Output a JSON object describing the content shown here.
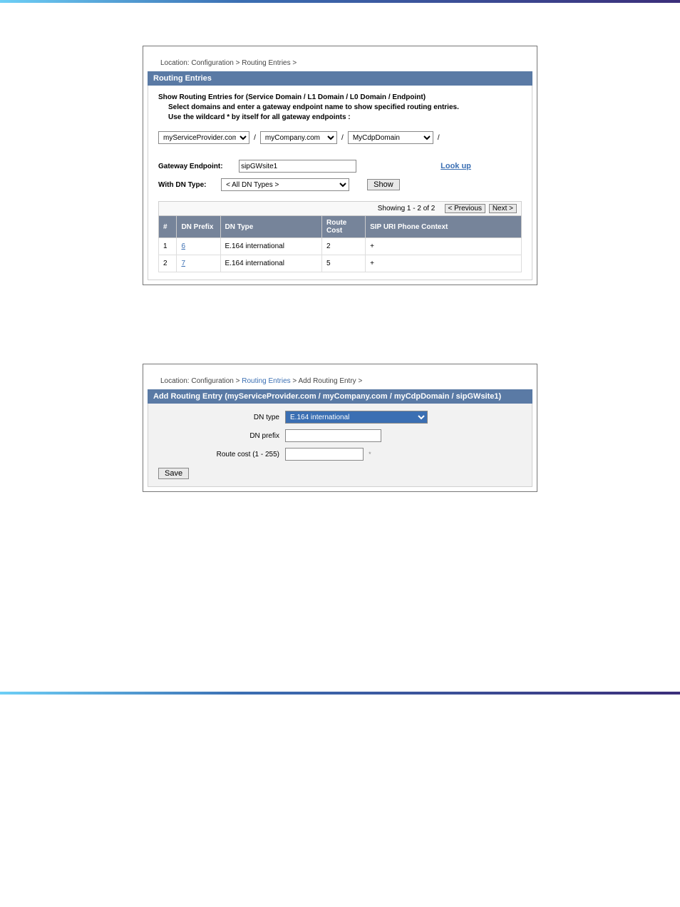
{
  "hr_colors": [
    "#6dcff6",
    "#3b6fb3",
    "#3b2e7a"
  ],
  "fig1": {
    "location_label": "Location:",
    "breadcrumb_static": "Configuration > Routing Entries >",
    "title": "Routing Entries",
    "instr_l1": "Show Routing Entries for (Service Domain / L1 Domain / L0 Domain / Endpoint)",
    "instr_l2": "Select domains and enter a gateway endpoint name to show specified routing entries.",
    "instr_l3": "Use the wildcard * by itself for all gateway endpoints :",
    "domain_service": "myServiceProvider.com",
    "domain_l1": "myCompany.com",
    "domain_l0": "MyCdpDomain",
    "sep": "/",
    "gateway_label": "Gateway Endpoint:",
    "gateway_value": "sipGWsite1",
    "lookup_label": "Look up",
    "with_dn_label": "With DN Type:",
    "with_dn_value": "< All DN Types >",
    "show_btn": "Show",
    "paging_text": "Showing 1 - 2 of 2",
    "prev_btn": "< Previous",
    "next_btn": "Next >",
    "columns": [
      "#",
      "DN Prefix",
      "DN Type",
      "Route Cost",
      "SIP URI Phone Context"
    ],
    "col_widths": [
      "5%",
      "12%",
      "28%",
      "12%",
      "43%"
    ],
    "rows": [
      {
        "n": "1",
        "prefix": "6",
        "type": "E.164 international",
        "cost": "2",
        "ctx": "+"
      },
      {
        "n": "2",
        "prefix": "7",
        "type": "E.164 international",
        "cost": "5",
        "ctx": "+"
      }
    ]
  },
  "fig2": {
    "location_label": "Location:",
    "crumb_config": "Configuration",
    "crumb_sep": " > ",
    "crumb_routing": "Routing Entries",
    "crumb_add": "Add Routing Entry",
    "crumb_tail": " >",
    "title": "Add Routing Entry (myServiceProvider.com / myCompany.com / myCdpDomain / sipGWsite1)",
    "dn_type_label": "DN type",
    "dn_type_value": "E.164 international",
    "dn_prefix_label": "DN prefix",
    "dn_prefix_value": "",
    "route_cost_label": "Route cost (1 - 255)",
    "route_cost_value": "",
    "req_mark": "*",
    "save_btn": "Save"
  },
  "caption_text": ""
}
